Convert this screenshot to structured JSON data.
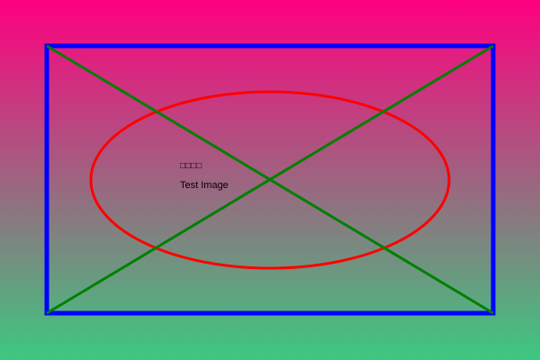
{
  "image": {
    "caption_glyphs": "□□□□",
    "caption_text": "Test Image"
  },
  "colors": {
    "background_top": "#ff0080",
    "background_bottom": "#3cc880",
    "rectangle": "#0000ff",
    "ellipse": "#ff0000",
    "diagonals": "#008000",
    "text": "#000000"
  },
  "icons": {
    "caption_glyphs": "missing-glyph-boxes"
  }
}
